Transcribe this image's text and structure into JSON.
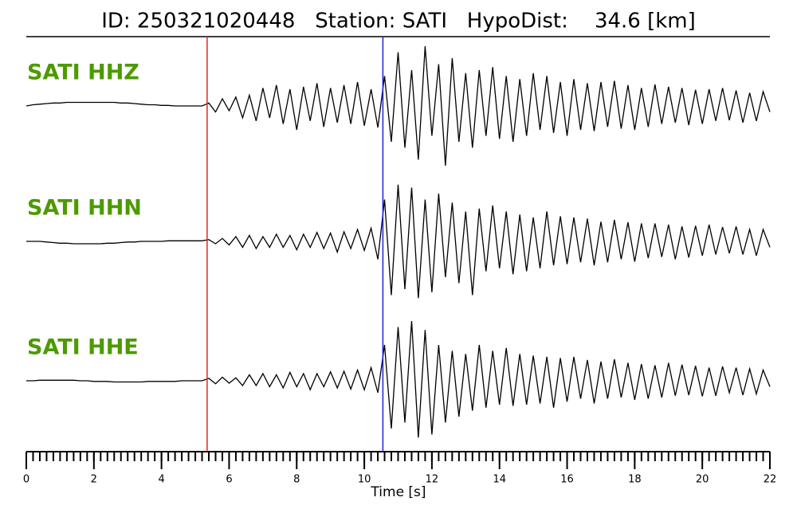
{
  "chart_data": {
    "type": "seismogram",
    "title": "ID: 250321020448   Station: SATI   HypoDist:    34.6 [km]",
    "xlabel": "Time [s]",
    "xlim": [
      0,
      22
    ],
    "xticks": [
      0,
      2,
      4,
      6,
      8,
      10,
      12,
      14,
      16,
      18,
      20,
      22
    ],
    "xminor_interval": 0.2,
    "ylim": [
      -1,
      1
    ],
    "label_color": "#4c9a00",
    "markers": [
      {
        "x": 5.35,
        "color": "#e8261e"
      },
      {
        "x": 10.55,
        "color": "#1d22d8"
      }
    ],
    "x": [
      0,
      0.2,
      0.4,
      0.6,
      0.8,
      1,
      1.2,
      1.4,
      1.6,
      1.8,
      2,
      2.2,
      2.4,
      2.6,
      2.8,
      3,
      3.2,
      3.4,
      3.6,
      3.8,
      4,
      4.2,
      4.4,
      4.6,
      4.8,
      5,
      5.2,
      5.4,
      5.6,
      5.8,
      6,
      6.2,
      6.4,
      6.6,
      6.8,
      7,
      7.2,
      7.4,
      7.6,
      7.8,
      8,
      8.2,
      8.4,
      8.6,
      8.8,
      9,
      9.2,
      9.4,
      9.6,
      9.8,
      10,
      10.2,
      10.4,
      10.6,
      10.8,
      11,
      11.2,
      11.4,
      11.6,
      11.8,
      12,
      12.2,
      12.4,
      12.6,
      12.8,
      13,
      13.2,
      13.4,
      13.6,
      13.8,
      14,
      14.2,
      14.4,
      14.6,
      14.8,
      15,
      15.2,
      15.4,
      15.6,
      15.8,
      16,
      16.2,
      16.4,
      16.6,
      16.8,
      17,
      17.2,
      17.4,
      17.6,
      17.8,
      18,
      18.2,
      18.4,
      18.6,
      18.8,
      19,
      19.2,
      19.4,
      19.6,
      19.8,
      20,
      20.2,
      20.4,
      20.6,
      20.8,
      21,
      21.2,
      21.4,
      21.6,
      21.8,
      22
    ],
    "series": [
      {
        "name": "SATI HHZ",
        "color": "#000000",
        "values": [
          0,
          0.02,
          0.03,
          0.04,
          0.05,
          0.05,
          0.06,
          0.06,
          0.06,
          0.06,
          0.06,
          0.06,
          0.06,
          0.06,
          0.05,
          0.05,
          0.04,
          0.03,
          0.02,
          0.02,
          0.01,
          0.01,
          0,
          0,
          0,
          0,
          0,
          0.05,
          -0.1,
          0.12,
          -0.08,
          0.15,
          -0.2,
          0.18,
          -0.25,
          0.3,
          -0.2,
          0.35,
          -0.3,
          0.28,
          -0.4,
          0.32,
          -0.25,
          0.38,
          -0.35,
          0.3,
          -0.28,
          0.35,
          -0.3,
          0.4,
          -0.33,
          0.28,
          -0.36,
          0.5,
          -0.6,
          0.9,
          -0.7,
          0.6,
          -0.9,
          1.0,
          -0.5,
          0.7,
          -1.0,
          0.8,
          -0.6,
          0.55,
          -0.7,
          0.6,
          -0.5,
          0.65,
          -0.55,
          0.5,
          -0.6,
          0.45,
          -0.5,
          0.55,
          -0.4,
          0.5,
          -0.45,
          0.4,
          -0.5,
          0.45,
          -0.4,
          0.38,
          -0.42,
          0.4,
          -0.35,
          0.42,
          -0.38,
          0.35,
          -0.4,
          0.3,
          -0.35,
          0.36,
          -0.3,
          0.32,
          -0.28,
          0.3,
          -0.32,
          0.27,
          -0.3,
          0.28,
          -0.25,
          0.3,
          -0.24,
          0.26,
          -0.28,
          0.22,
          -0.25,
          0.24,
          -0.1
        ]
      },
      {
        "name": "SATI HHN",
        "color": "#000000",
        "values": [
          0,
          0,
          0,
          -0.01,
          -0.02,
          -0.03,
          -0.03,
          -0.04,
          -0.04,
          -0.04,
          -0.04,
          -0.04,
          -0.03,
          -0.03,
          -0.02,
          -0.01,
          -0.01,
          0,
          0,
          0,
          0,
          0.01,
          0.01,
          0.01,
          0.01,
          0.01,
          0.01,
          0.03,
          -0.04,
          0.05,
          -0.06,
          0.08,
          -0.1,
          0.1,
          -0.12,
          0.08,
          -0.1,
          0.12,
          -0.1,
          0.1,
          -0.14,
          0.12,
          -0.1,
          0.15,
          -0.12,
          0.14,
          -0.18,
          0.16,
          -0.12,
          0.2,
          -0.15,
          0.22,
          -0.3,
          0.7,
          -0.9,
          0.95,
          -0.8,
          0.9,
          -0.95,
          0.7,
          -0.85,
          0.8,
          -0.6,
          0.65,
          -0.7,
          0.5,
          -0.9,
          0.55,
          -0.5,
          0.6,
          -0.45,
          0.5,
          -0.55,
          0.45,
          -0.5,
          0.4,
          -0.45,
          0.5,
          -0.4,
          0.42,
          -0.38,
          0.4,
          -0.35,
          0.38,
          -0.4,
          0.33,
          -0.35,
          0.36,
          -0.3,
          0.32,
          -0.34,
          0.3,
          -0.28,
          0.3,
          -0.26,
          0.28,
          -0.3,
          0.25,
          -0.27,
          0.26,
          -0.24,
          0.28,
          -0.22,
          0.24,
          -0.2,
          0.25,
          -0.22,
          0.2,
          -0.24,
          0.2,
          -0.1
        ]
      },
      {
        "name": "SATI HHE",
        "color": "#000000",
        "values": [
          0,
          0,
          0.01,
          0.01,
          0.01,
          0.01,
          0.01,
          0.01,
          0,
          0,
          -0.01,
          -0.01,
          -0.01,
          -0.02,
          -0.02,
          -0.02,
          -0.02,
          -0.02,
          -0.01,
          -0.01,
          -0.01,
          -0.01,
          -0.01,
          0,
          0,
          0,
          0,
          0.04,
          -0.05,
          0.06,
          -0.04,
          0.05,
          -0.08,
          0.1,
          -0.08,
          0.12,
          -0.1,
          0.1,
          -0.12,
          0.14,
          -0.1,
          0.12,
          -0.15,
          0.12,
          -0.1,
          0.15,
          -0.12,
          0.16,
          -0.14,
          0.18,
          -0.15,
          0.22,
          -0.2,
          0.6,
          -0.8,
          0.9,
          -0.7,
          1.0,
          -0.95,
          0.85,
          -0.9,
          0.6,
          -0.7,
          0.5,
          -0.6,
          0.45,
          -0.5,
          0.6,
          -0.45,
          0.5,
          -0.4,
          0.55,
          -0.42,
          0.45,
          -0.4,
          0.42,
          -0.38,
          0.4,
          -0.45,
          0.38,
          -0.35,
          0.4,
          -0.3,
          0.35,
          -0.38,
          0.32,
          -0.3,
          0.36,
          -0.28,
          0.3,
          -0.32,
          0.28,
          -0.3,
          0.26,
          -0.28,
          0.3,
          -0.25,
          0.27,
          -0.24,
          0.25,
          -0.26,
          0.22,
          -0.25,
          0.24,
          -0.2,
          0.22,
          -0.24,
          0.2,
          -0.22,
          0.18,
          -0.1
        ]
      }
    ]
  }
}
